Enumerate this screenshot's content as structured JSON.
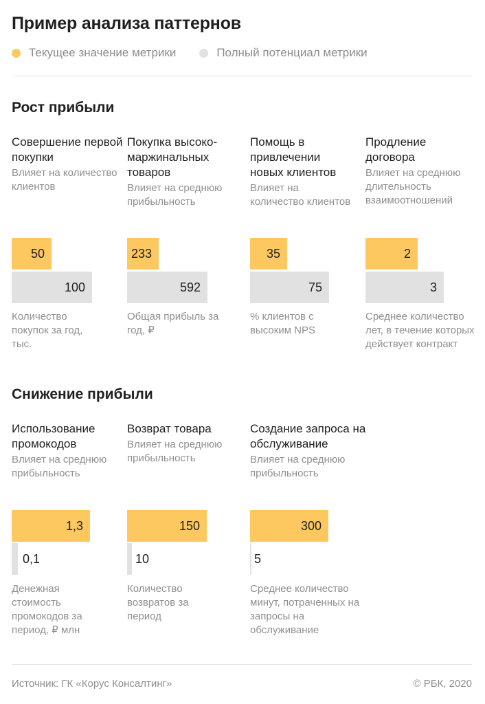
{
  "title": "Пример анализа паттернов",
  "legend": {
    "current": {
      "label": "Текущее значение метрики",
      "color": "#fdc85f"
    },
    "potential": {
      "label": "Полный потенциал метрики",
      "color": "#e1e1e1"
    }
  },
  "sections": [
    {
      "title": "Рост прибыли"
    },
    {
      "title": "Снижение прибыли"
    }
  ],
  "chart_data": [
    {
      "type": "bar",
      "title": "Рост прибыли",
      "metrics": [
        {
          "name": "Совершение первой покупки",
          "impact": "Влияет на количество клиентов",
          "current": "50",
          "potential": "100",
          "unit": "Количество покупок за год, тыс."
        },
        {
          "name": "Покупка высоко-маржинальных товаров",
          "impact": "Влияет на среднюю прибыльность",
          "current": "233",
          "potential": "592",
          "unit": "Общая прибыль за год, ₽"
        },
        {
          "name": "Помощь в привлечении новых клиентов",
          "impact": "Влияет на количество клиентов",
          "current": "35",
          "potential": "75",
          "unit": "% клиентов с высоким NPS"
        },
        {
          "name": "Продление договора",
          "impact": "Влияет на среднюю длительность взаимоотношений",
          "current": "2",
          "potential": "3",
          "unit": "Среднее количество лет, в течение которых действует контракт"
        }
      ]
    },
    {
      "type": "bar",
      "title": "Снижение прибыли",
      "metrics": [
        {
          "name": "Использование промокодов",
          "impact": "Влияет на среднюю прибыльность",
          "current": "1,3",
          "potential": "0,1",
          "unit": "Денежная стоимость промокодов за период, ₽ млн"
        },
        {
          "name": "Возврат товара",
          "impact": "Влияет на среднюю прибыльность",
          "current": "150",
          "potential": "10",
          "unit": "Количество возвратов за период"
        },
        {
          "name": "Создание запроса на обслуживание",
          "impact": "Влияет на среднюю прибыльность",
          "current": "300",
          "potential": "5",
          "unit": "Среднее количество минут, потраченных на запросы на обслуживание"
        }
      ]
    }
  ],
  "footer": {
    "source": "Источник: ГК «Корус Консалтинг»",
    "copyright": "© РБК, 2020"
  }
}
